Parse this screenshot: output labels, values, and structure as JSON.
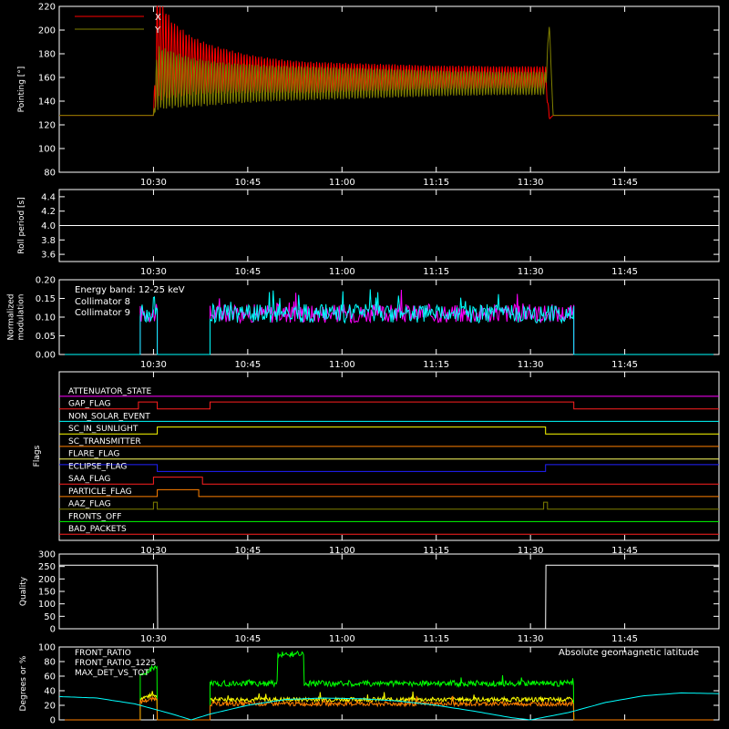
{
  "chart_data": [
    {
      "type": "line",
      "ylabel": "Pointing [°]",
      "ylim": [
        80,
        220
      ],
      "yticks": [
        80,
        100,
        120,
        140,
        160,
        180,
        200,
        220
      ],
      "xlim": [
        10.25,
        12.0
      ],
      "xticks": [
        "10:30",
        "10:45",
        "11:00",
        "11:15",
        "11:30",
        "11:45"
      ],
      "legend_placement": "top-left",
      "series": [
        {
          "name": "X",
          "color": "#ff0000",
          "x": [
            10.25,
            10.5,
            10.51,
            10.55,
            10.6,
            10.65,
            10.7,
            10.75,
            10.8,
            10.85,
            10.9,
            10.95,
            11.0,
            11.05,
            11.1,
            11.15,
            11.2,
            11.25,
            11.3,
            11.35,
            11.4,
            11.45,
            11.5,
            11.54,
            11.55,
            11.56,
            12.0
          ],
          "y": [
            128,
            128,
            185,
            175,
            170,
            167,
            165,
            163,
            162,
            161,
            160,
            160,
            160,
            160,
            160,
            160,
            160,
            160,
            160,
            160,
            160,
            160,
            160,
            160,
            125,
            128,
            128
          ],
          "amp": [
            0,
            0,
            90,
            65,
            50,
            42,
            37,
            33,
            30,
            28,
            27,
            26,
            25,
            24,
            23,
            22,
            21,
            20,
            20,
            20,
            19,
            19,
            19,
            19,
            0,
            0,
            0
          ]
        },
        {
          "name": "Y",
          "color": "#808000",
          "x": [
            10.25,
            10.5,
            10.51,
            10.55,
            10.6,
            10.65,
            10.7,
            10.75,
            10.8,
            10.85,
            10.9,
            10.95,
            11.0,
            11.05,
            11.1,
            11.15,
            11.2,
            11.25,
            11.3,
            11.35,
            11.4,
            11.45,
            11.5,
            11.54,
            11.55,
            11.56,
            12.0
          ],
          "y": [
            128,
            128,
            160,
            158,
            156,
            155,
            155,
            155,
            155,
            155,
            155,
            155,
            155,
            155,
            155,
            155,
            155,
            155,
            155,
            155,
            155,
            155,
            155,
            155,
            205,
            128,
            128
          ],
          "amp": [
            0,
            0,
            55,
            48,
            42,
            38,
            35,
            33,
            31,
            30,
            29,
            28,
            27,
            26,
            25,
            24,
            23,
            22,
            21,
            21,
            20,
            20,
            20,
            20,
            0,
            0,
            0
          ]
        }
      ]
    },
    {
      "type": "line",
      "ylabel": "Roll period [s]",
      "ylim": [
        3.5,
        4.5
      ],
      "yticks": [
        "3.6",
        "3.8",
        "4.0",
        "4.2",
        "4.4"
      ],
      "xticks": [
        "10:30",
        "10:45",
        "11:00",
        "11:15",
        "11:30",
        "11:45"
      ],
      "series": [
        {
          "name": "",
          "color": "#ffffff",
          "x": [
            10.25,
            12.0
          ],
          "y": [
            4.0,
            4.0
          ]
        }
      ]
    },
    {
      "type": "line",
      "ylabel": [
        "Normalized",
        "modulation"
      ],
      "ylim": [
        0.0,
        0.2
      ],
      "yticks": [
        "0.00",
        "0.05",
        "0.10",
        "0.15",
        "0.20"
      ],
      "xticks": [
        "10:30",
        "10:45",
        "11:00",
        "11:15",
        "11:30",
        "11:45"
      ],
      "annotations": [
        "Energy band: 12-25 keV"
      ],
      "segments": [
        [
          10.465,
          10.51
        ],
        [
          10.65,
          11.615
        ]
      ],
      "series": [
        {
          "name": "Collimator 8",
          "color": "#00ffff",
          "mean": 0.11
        },
        {
          "name": "Collimator 9",
          "color": "#ff00ff",
          "mean": 0.11
        }
      ]
    },
    {
      "type": "step",
      "ylabel": "Flags",
      "xticks": [
        "10:30",
        "10:45",
        "11:00",
        "11:15",
        "11:30",
        "11:45"
      ],
      "flags": [
        {
          "name": "ATTENUATOR_STATE",
          "color": "#ff00ff",
          "x": [
            10.25,
            12.0
          ],
          "state": [
            0,
            0
          ]
        },
        {
          "name": "GAP_FLAG",
          "color": "#ff2020",
          "x": [
            10.25,
            10.46,
            10.51,
            10.65,
            11.615,
            12.0
          ],
          "state": [
            0,
            1,
            0,
            1,
            0,
            0
          ]
        },
        {
          "name": "NON_SOLAR_EVENT",
          "color": "#00ffff",
          "x": [
            10.25,
            12.0
          ],
          "state": [
            0,
            0
          ]
        },
        {
          "name": "SC_IN_SUNLIGHT",
          "color": "#ffff00",
          "x": [
            10.25,
            10.51,
            11.54,
            12.0
          ],
          "state": [
            0,
            1,
            0,
            0
          ]
        },
        {
          "name": "SC_TRANSMITTER",
          "color": "#ff8000",
          "x": [
            10.25,
            12.0
          ],
          "state": [
            0,
            0
          ]
        },
        {
          "name": "FLARE_FLAG",
          "color": "#ffff60",
          "x": [
            10.25,
            12.0
          ],
          "state": [
            0,
            0
          ]
        },
        {
          "name": "ECLIPSE_FLAG",
          "color": "#2020ff",
          "x": [
            10.25,
            10.51,
            11.54,
            12.0
          ],
          "state": [
            1,
            0,
            1,
            1
          ]
        },
        {
          "name": "SAA_FLAG",
          "color": "#ff2020",
          "x": [
            10.25,
            10.5,
            10.63,
            12.0
          ],
          "state": [
            0,
            1,
            0,
            0
          ]
        },
        {
          "name": "PARTICLE_FLAG",
          "color": "#ff8000",
          "x": [
            10.25,
            10.51,
            10.62,
            12.0
          ],
          "state": [
            0,
            1,
            0,
            0
          ]
        },
        {
          "name": "AAZ_FLAG",
          "color": "#808000",
          "x": [
            10.25,
            10.5,
            10.51,
            11.535,
            11.545,
            12.0
          ],
          "state": [
            0,
            1,
            0,
            1,
            0,
            0
          ]
        },
        {
          "name": "FRONTS_OFF",
          "color": "#00ff00",
          "x": [
            10.25,
            12.0
          ],
          "state": [
            0,
            0
          ]
        },
        {
          "name": "BAD_PACKETS",
          "color": "#ff2020",
          "x": [
            10.25,
            12.0
          ],
          "state": [
            0,
            0
          ]
        }
      ]
    },
    {
      "type": "line",
      "ylabel": "Quality",
      "ylim": [
        0,
        300
      ],
      "yticks": [
        "0",
        "50",
        "100",
        "150",
        "200",
        "250",
        "300"
      ],
      "xticks": [
        "10:30",
        "10:45",
        "11:00",
        "11:15",
        "11:30",
        "11:45"
      ],
      "series": [
        {
          "name": "",
          "color": "#ffffff",
          "x": [
            10.25,
            10.51,
            10.511,
            11.54,
            11.541,
            12.0
          ],
          "y": [
            255,
            255,
            0,
            0,
            255,
            255
          ]
        }
      ]
    },
    {
      "type": "line",
      "ylabel": "Degrees or %",
      "ylim": [
        0,
        100
      ],
      "yticks": [
        "0",
        "20",
        "40",
        "60",
        "80",
        "100"
      ],
      "xticks": [
        "10:30",
        "10:45",
        "11:00",
        "11:15",
        "11:30",
        "11:45"
      ],
      "legend_placement": "top-left",
      "series": [
        {
          "name": "FRONT_RATIO",
          "color": "#ffff00",
          "segments": [
            [
              10.465,
              10.51,
              30
            ],
            [
              10.65,
              11.615,
              28
            ]
          ]
        },
        {
          "name": "FRONT_RATIO_1225",
          "color": "#00ff00",
          "segments": [
            [
              10.465,
              10.51,
              60
            ],
            [
              10.65,
              11.615,
              50
            ]
          ],
          "bump": [
            10.83,
            10.9,
            90
          ]
        },
        {
          "name": "MAX_DET_VS_TOT",
          "color": "#ff8000",
          "segments": [
            [
              10.465,
              10.51,
              25
            ],
            [
              10.65,
              11.615,
              22
            ]
          ]
        },
        {
          "name": "Absolute geomagnetic latitude",
          "color": "#00ffff",
          "x": [
            10.25,
            10.35,
            10.45,
            10.55,
            10.6,
            10.65,
            10.75,
            10.85,
            10.95,
            11.05,
            11.15,
            11.25,
            11.35,
            11.45,
            11.5,
            11.6,
            11.7,
            11.8,
            11.9,
            12.0
          ],
          "y": [
            32,
            30,
            22,
            8,
            0,
            8,
            20,
            28,
            30,
            29,
            26,
            20,
            12,
            3,
            0,
            10,
            24,
            33,
            37,
            36
          ]
        }
      ]
    }
  ]
}
